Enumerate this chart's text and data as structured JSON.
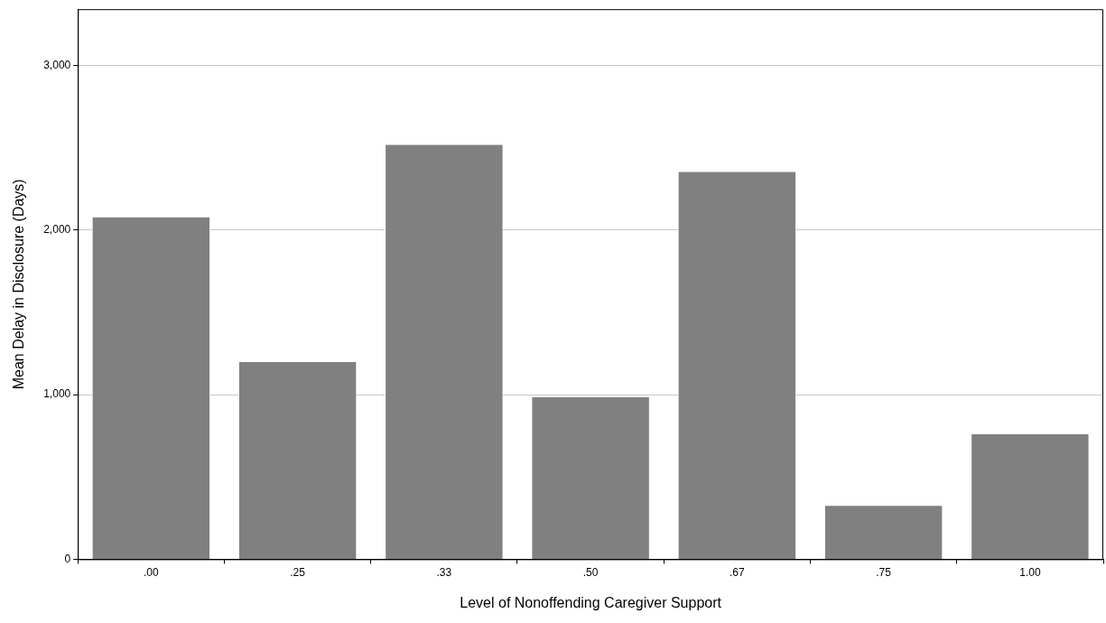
{
  "chart_data": {
    "type": "bar",
    "xlabel": "Level of Nonoffending Caregiver Support",
    "ylabel": "Mean Delay in Disclosure (Days)",
    "categories": [
      ".00",
      ".25",
      ".33",
      ".50",
      ".67",
      ".75",
      "1.00"
    ],
    "values": [
      2082,
      1203,
      2522,
      989,
      2357,
      330,
      764
    ],
    "color": "#808080",
    "ylim": [
      0,
      3340
    ],
    "yticks": [
      {
        "value": 0,
        "label": "0"
      },
      {
        "value": 1000,
        "label": "1,000"
      },
      {
        "value": 2000,
        "label": "2,000"
      },
      {
        "value": 3000,
        "label": "3,000"
      }
    ],
    "grid": "y",
    "legend": false
  }
}
